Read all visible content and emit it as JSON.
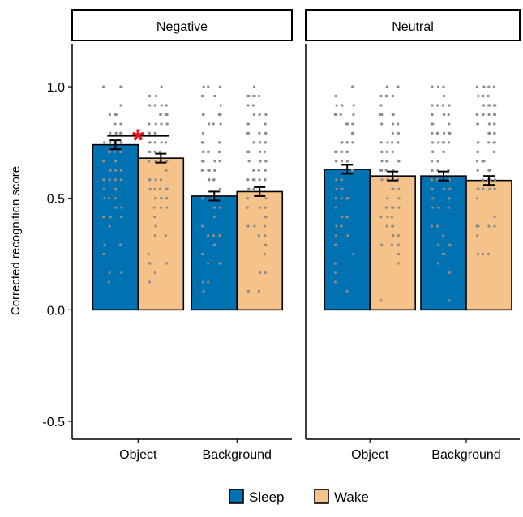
{
  "chart_data": {
    "type": "bar",
    "ylabel": "Corrected recognition score",
    "xlabel": "",
    "ylim": [
      -0.58,
      1.2
    ],
    "yticks": [
      -0.5,
      0.0,
      0.5,
      1.0
    ],
    "ytick_labels": [
      "-0.5",
      "0.0",
      "0.5",
      "1.0"
    ],
    "categories": [
      "Object",
      "Background"
    ],
    "legend": {
      "placement": "bottom",
      "entries": [
        "Sleep",
        "Wake"
      ]
    },
    "colors": {
      "Sleep": "#0072B2",
      "Wake": "#F5C38A",
      "points": "#8c8c8c",
      "significance": "#ee1111"
    },
    "grid": false,
    "panels": [
      {
        "title": "Negative",
        "series": [
          {
            "name": "Sleep",
            "values": [
              0.74,
              0.51
            ],
            "se": [
              0.02,
              0.02
            ]
          },
          {
            "name": "Wake",
            "values": [
              0.68,
              0.53
            ],
            "se": [
              0.02,
              0.02
            ]
          }
        ],
        "significance": [
          {
            "category": "Object",
            "marker": "*",
            "bracket_y": 0.78
          }
        ]
      },
      {
        "title": "Neutral",
        "series": [
          {
            "name": "Sleep",
            "values": [
              0.63,
              0.6
            ],
            "se": [
              0.02,
              0.02
            ]
          },
          {
            "name": "Wake",
            "values": [
              0.6,
              0.58
            ],
            "se": [
              0.02,
              0.02
            ]
          }
        ],
        "significance": []
      }
    ]
  }
}
